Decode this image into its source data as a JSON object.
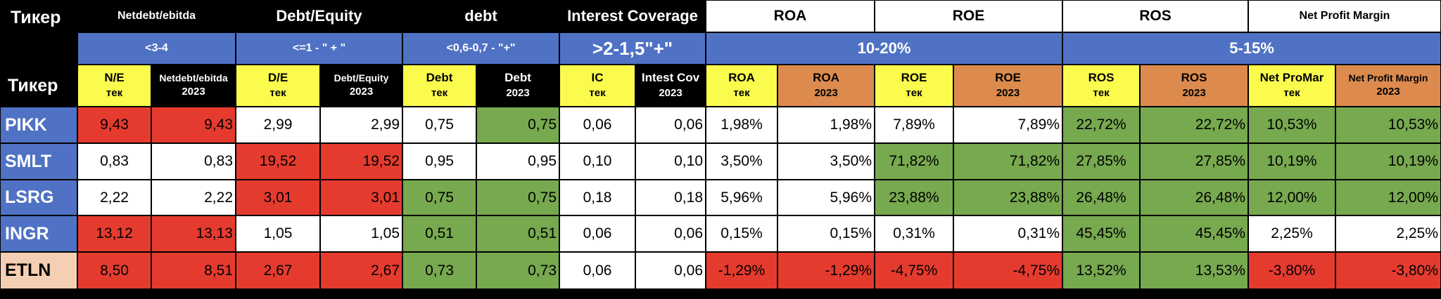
{
  "palette": {
    "black": "#000000",
    "blue": "#4f72c4",
    "yellow": "#fbfb4d",
    "orange": "#dd8a4e",
    "red": "#e53b2f",
    "green": "#77a94f",
    "white": "#ffffff",
    "peach": "#f5cfb3"
  },
  "header": {
    "ticker_label": "Тикер",
    "groups": [
      {
        "title": "Netdebt/ebitda",
        "norm": "<3-4"
      },
      {
        "title": "Debt/Equity",
        "norm": "<=1 - \" + \""
      },
      {
        "title": "debt",
        "norm": "<0,6-0,7 - \"+\""
      },
      {
        "title": "Interest Coverage",
        "norm": ">2-1,5\"+\""
      },
      {
        "title": "ROA",
        "norm": "10-20%"
      },
      {
        "title": "ROE",
        "norm": ""
      },
      {
        "title": "ROS",
        "norm": "5-15%"
      },
      {
        "title": "Net Profit Margin",
        "norm": ""
      }
    ],
    "columns": [
      {
        "line1": "N/E",
        "line2": "тек"
      },
      {
        "line1": "Netdebt/ebitda",
        "line2": "2023"
      },
      {
        "line1": "D/E",
        "line2": "тек"
      },
      {
        "line1": "Debt/Equity",
        "line2": "2023"
      },
      {
        "line1": "Debt",
        "line2": "тек"
      },
      {
        "line1": "Debt",
        "line2": "2023"
      },
      {
        "line1": "IC",
        "line2": "тек"
      },
      {
        "line1": "Intest Cov",
        "line2": "2023"
      },
      {
        "line1": "ROA",
        "line2": "тек"
      },
      {
        "line1": "ROA",
        "line2": "2023"
      },
      {
        "line1": "ROE",
        "line2": "тек"
      },
      {
        "line1": "ROE",
        "line2": "2023"
      },
      {
        "line1": "ROS",
        "line2": "тек"
      },
      {
        "line1": "ROS",
        "line2": "2023"
      },
      {
        "line1": "Net ProMar",
        "line2": "тек"
      },
      {
        "line1": "Net Profit Margin",
        "line2": "2023"
      }
    ]
  },
  "rows": [
    {
      "ticker": "PIKK",
      "values": [
        "9,43",
        "9,43",
        "2,99",
        "2,99",
        "0,75",
        "0,75",
        "0,06",
        "0,06",
        "1,98%",
        "1,98%",
        "7,89%",
        "7,89%",
        "22,72%",
        "22,72%",
        "10,53%",
        "10,53%"
      ],
      "status": [
        "red",
        "red",
        "white",
        "white",
        "white",
        "green",
        "white",
        "white",
        "white",
        "white",
        "white",
        "white",
        "green",
        "green",
        "green",
        "green"
      ]
    },
    {
      "ticker": "SMLT",
      "values": [
        "0,83",
        "0,83",
        "19,52",
        "19,52",
        "0,95",
        "0,95",
        "0,10",
        "0,10",
        "3,50%",
        "3,50%",
        "71,82%",
        "71,82%",
        "27,85%",
        "27,85%",
        "10,19%",
        "10,19%"
      ],
      "status": [
        "white",
        "white",
        "red",
        "red",
        "white",
        "white",
        "white",
        "white",
        "white",
        "white",
        "green",
        "green",
        "green",
        "green",
        "green",
        "green"
      ]
    },
    {
      "ticker": "LSRG",
      "values": [
        "2,22",
        "2,22",
        "3,01",
        "3,01",
        "0,75",
        "0,75",
        "0,18",
        "0,18",
        "5,96%",
        "5,96%",
        "23,88%",
        "23,88%",
        "26,48%",
        "26,48%",
        "12,00%",
        "12,00%"
      ],
      "status": [
        "white",
        "white",
        "red",
        "red",
        "green",
        "green",
        "white",
        "white",
        "white",
        "white",
        "green",
        "green",
        "green",
        "green",
        "green",
        "green"
      ]
    },
    {
      "ticker": "INGR",
      "values": [
        "13,12",
        "13,13",
        "1,05",
        "1,05",
        "0,51",
        "0,51",
        "0,06",
        "0,06",
        "0,15%",
        "0,15%",
        "0,31%",
        "0,31%",
        "45,45%",
        "45,45%",
        "2,25%",
        "2,25%"
      ],
      "status": [
        "red",
        "red",
        "white",
        "white",
        "green",
        "green",
        "white",
        "white",
        "white",
        "white",
        "white",
        "white",
        "green",
        "green",
        "white",
        "white"
      ]
    },
    {
      "ticker": "ETLN",
      "values": [
        "8,50",
        "8,51",
        "2,67",
        "2,67",
        "0,73",
        "0,73",
        "0,06",
        "0,06",
        "-1,29%",
        "-1,29%",
        "-4,75%",
        "-4,75%",
        "13,52%",
        "13,53%",
        "-3,80%",
        "-3,80%"
      ],
      "status": [
        "red",
        "red",
        "red",
        "red",
        "green",
        "green",
        "white",
        "white",
        "red",
        "red",
        "red",
        "red",
        "green",
        "green",
        "red",
        "red"
      ]
    }
  ]
}
